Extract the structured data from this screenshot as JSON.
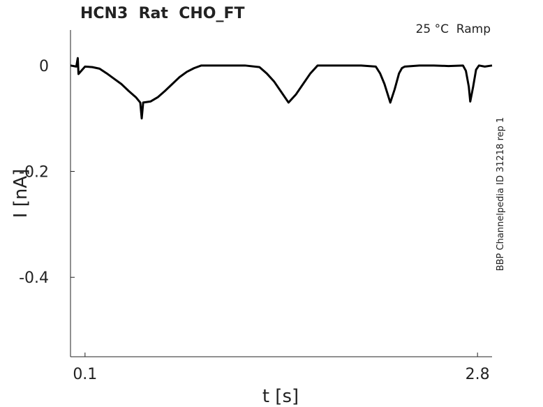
{
  "chart_data": {
    "type": "line",
    "title": "HCN3  Rat  CHO_FT",
    "annotation": "25 °C  Ramp",
    "side_note": "BBP Channelpedia ID 31218 rep 1",
    "xlabel": "t [s]",
    "ylabel": "I [nA]",
    "xlim": [
      0,
      2.9
    ],
    "ylim": [
      -0.55,
      0.067
    ],
    "xticks": [
      0.1,
      2.8
    ],
    "yticks": [
      0,
      -0.2,
      -0.4
    ],
    "x": [
      0,
      0.04,
      0.05,
      0.055,
      0.1,
      0.15,
      0.2,
      0.25,
      0.3,
      0.35,
      0.4,
      0.45,
      0.48,
      0.49,
      0.5,
      0.55,
      0.6,
      0.65,
      0.7,
      0.75,
      0.8,
      0.85,
      0.9,
      1.0,
      1.1,
      1.2,
      1.3,
      1.35,
      1.4,
      1.45,
      1.5,
      1.55,
      1.6,
      1.65,
      1.7,
      1.8,
      1.9,
      2.0,
      2.1,
      2.13,
      2.16,
      2.2,
      2.23,
      2.26,
      2.28,
      2.3,
      2.4,
      2.5,
      2.6,
      2.7,
      2.72,
      2.74,
      2.75,
      2.77,
      2.79,
      2.81,
      2.85,
      2.9
    ],
    "series": [
      {
        "color": "#000000",
        "values": [
          0,
          -0.002,
          0.014,
          -0.016,
          -0.002,
          -0.003,
          -0.006,
          -0.015,
          -0.025,
          -0.035,
          -0.048,
          -0.06,
          -0.07,
          -0.1,
          -0.07,
          -0.068,
          -0.06,
          -0.048,
          -0.035,
          -0.022,
          -0.012,
          -0.005,
          0,
          0,
          0,
          0,
          -0.003,
          -0.015,
          -0.03,
          -0.05,
          -0.07,
          -0.055,
          -0.035,
          -0.015,
          0,
          0,
          0,
          0,
          -0.002,
          -0.015,
          -0.035,
          -0.07,
          -0.045,
          -0.015,
          -0.005,
          -0.002,
          0,
          0,
          -0.001,
          0,
          -0.01,
          -0.04,
          -0.068,
          -0.04,
          -0.008,
          0,
          -0.002,
          0
        ]
      }
    ]
  }
}
